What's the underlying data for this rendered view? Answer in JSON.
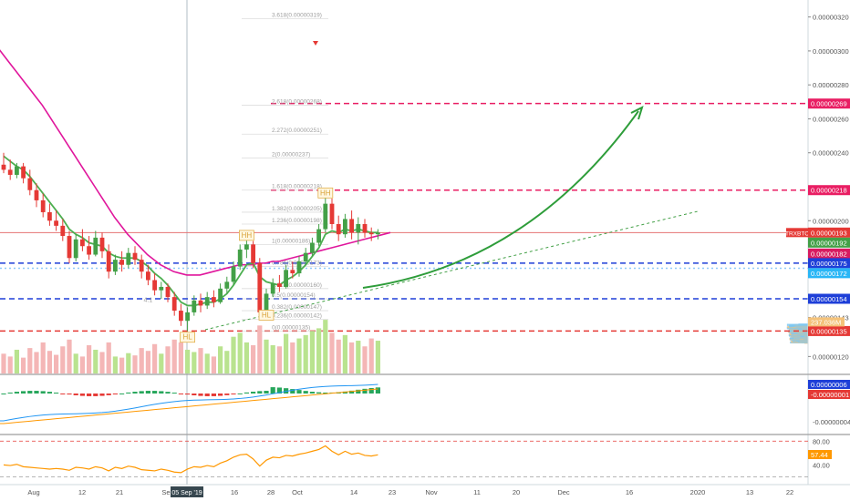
{
  "chart_data": {
    "type": "candlestick",
    "symbol": "TRXBTC",
    "price_axis": {
      "ylim": [
        1.1e-06,
        3.3e-06
      ],
      "ticks": [
        {
          "v": 3.2e-06,
          "label": "0.00000320"
        },
        {
          "v": 3e-06,
          "label": "0.00000300"
        },
        {
          "v": 2.8e-06,
          "label": "0.00000280"
        },
        {
          "v": 2.6e-06,
          "label": "0.00000260"
        },
        {
          "v": 2.4e-06,
          "label": "0.00000240"
        },
        {
          "v": 2e-06,
          "label": "0.00000200"
        },
        {
          "v": 1.43e-06,
          "label": "0.00000143"
        },
        {
          "v": 1.2e-06,
          "label": "0.00000120"
        }
      ]
    },
    "price_badges": [
      {
        "v": 2.69e-06,
        "label": "0.00000269",
        "color": "#e91e63"
      },
      {
        "v": 2.18e-06,
        "label": "0.00000218",
        "color": "#e91e63"
      },
      {
        "v": 1.93e-06,
        "label": "0.00000193",
        "color": "#e53935"
      },
      {
        "v": 1.92e-06,
        "label": "0.00000192",
        "color": "#43a047"
      },
      {
        "v": 1.82e-06,
        "label": "0.00000182",
        "color": "#d81b60"
      },
      {
        "v": 1.75e-06,
        "label": "0.00000175",
        "color": "#1e3fd8"
      },
      {
        "v": 1.72e-06,
        "label": "0.00000172",
        "color": "#29b6f6"
      },
      {
        "v": 1.54e-06,
        "label": "0.00000154",
        "color": "#1e3fd8"
      },
      {
        "v": 1.35e-06,
        "label": "0.00000135",
        "color": "#e53935"
      }
    ],
    "volume_badge": "237.036M",
    "horizontal_levels": [
      {
        "v": 2.69e-06,
        "color": "#e91e63",
        "style": "dashed"
      },
      {
        "v": 2.18e-06,
        "color": "#e91e63",
        "style": "dashed"
      },
      {
        "v": 1.93e-06,
        "color": "#e57373",
        "style": "solid"
      },
      {
        "v": 1.75e-06,
        "color": "#1e3fd8",
        "style": "dashed"
      },
      {
        "v": 1.72e-06,
        "color": "#90caf9",
        "style": "dotted"
      },
      {
        "v": 1.54e-06,
        "color": "#1e3fd8",
        "style": "dashed"
      },
      {
        "v": 1.35e-06,
        "color": "#e53935",
        "style": "dashed"
      }
    ],
    "fib_levels": [
      {
        "v": 3.19e-06,
        "label": "3.618(0.00000319)"
      },
      {
        "v": 2.68e-06,
        "label": "2.618(0.00000268)"
      },
      {
        "v": 2.51e-06,
        "label": "2.272(0.00000251)"
      },
      {
        "v": 2.37e-06,
        "label": "2(0.00000237)"
      },
      {
        "v": 2.18e-06,
        "label": "1.618(0.00000218)"
      },
      {
        "v": 2.05e-06,
        "label": "1.382(0.00000205)"
      },
      {
        "v": 1.98e-06,
        "label": "1.236(0.00000198)"
      },
      {
        "v": 1.86e-06,
        "label": "1(0.00000186)"
      },
      {
        "v": 1.73e-06,
        "label": "0.786(0.00000173)"
      },
      {
        "v": 1.6e-06,
        "label": "0.618(0.00000160)"
      },
      {
        "v": 1.54e-06,
        "label": "0.5(0.00000154)"
      },
      {
        "v": 1.47e-06,
        "label": "0.382(0.00000147)"
      },
      {
        "v": 1.42e-06,
        "label": "0.236(0.00000142)"
      },
      {
        "v": 1.35e-06,
        "label": "0(0.00000135)"
      }
    ],
    "pattern_labels": [
      {
        "i": 49,
        "v": 2.15e-06,
        "label": "HH"
      },
      {
        "i": 37,
        "v": 1.9e-06,
        "label": "HH"
      },
      {
        "i": 40,
        "v": 1.43e-06,
        "label": "HL"
      },
      {
        "i": 28,
        "v": 1.3e-06,
        "label": "HL"
      }
    ],
    "misc_labels": [
      {
        "i": 22,
        "v": 1.52e-06,
        "label": "4.1"
      }
    ],
    "candles": [
      {
        "o": 2.33,
        "h": 2.4,
        "l": 2.28,
        "c": 2.3
      },
      {
        "o": 2.3,
        "h": 2.36,
        "l": 2.24,
        "c": 2.27
      },
      {
        "o": 2.27,
        "h": 2.34,
        "l": 2.25,
        "c": 2.32
      },
      {
        "o": 2.32,
        "h": 2.34,
        "l": 2.22,
        "c": 2.25
      },
      {
        "o": 2.25,
        "h": 2.3,
        "l": 2.15,
        "c": 2.18
      },
      {
        "o": 2.18,
        "h": 2.22,
        "l": 2.08,
        "c": 2.12
      },
      {
        "o": 2.12,
        "h": 2.16,
        "l": 2.02,
        "c": 2.05
      },
      {
        "o": 2.05,
        "h": 2.1,
        "l": 1.97,
        "c": 2.0
      },
      {
        "o": 2.0,
        "h": 2.06,
        "l": 1.94,
        "c": 1.97
      },
      {
        "o": 1.97,
        "h": 2.01,
        "l": 1.88,
        "c": 1.91
      },
      {
        "o": 1.91,
        "h": 1.94,
        "l": 1.75,
        "c": 1.78
      },
      {
        "o": 1.78,
        "h": 1.92,
        "l": 1.76,
        "c": 1.89
      },
      {
        "o": 1.89,
        "h": 1.95,
        "l": 1.82,
        "c": 1.85
      },
      {
        "o": 1.85,
        "h": 1.91,
        "l": 1.77,
        "c": 1.8
      },
      {
        "o": 1.8,
        "h": 1.94,
        "l": 1.79,
        "c": 1.9
      },
      {
        "o": 1.9,
        "h": 1.93,
        "l": 1.78,
        "c": 1.82
      },
      {
        "o": 1.82,
        "h": 1.86,
        "l": 1.66,
        "c": 1.7
      },
      {
        "o": 1.7,
        "h": 1.8,
        "l": 1.68,
        "c": 1.77
      },
      {
        "o": 1.77,
        "h": 1.82,
        "l": 1.7,
        "c": 1.74
      },
      {
        "o": 1.74,
        "h": 1.84,
        "l": 1.72,
        "c": 1.81
      },
      {
        "o": 1.81,
        "h": 1.85,
        "l": 1.74,
        "c": 1.77
      },
      {
        "o": 1.77,
        "h": 1.8,
        "l": 1.66,
        "c": 1.7
      },
      {
        "o": 1.7,
        "h": 1.74,
        "l": 1.62,
        "c": 1.65
      },
      {
        "o": 1.65,
        "h": 1.69,
        "l": 1.56,
        "c": 1.59
      },
      {
        "o": 1.59,
        "h": 1.64,
        "l": 1.54,
        "c": 1.61
      },
      {
        "o": 1.61,
        "h": 1.63,
        "l": 1.52,
        "c": 1.55
      },
      {
        "o": 1.55,
        "h": 1.58,
        "l": 1.44,
        "c": 1.47
      },
      {
        "o": 1.47,
        "h": 1.51,
        "l": 1.38,
        "c": 1.41
      },
      {
        "o": 1.41,
        "h": 1.49,
        "l": 1.35,
        "c": 1.46
      },
      {
        "o": 1.46,
        "h": 1.56,
        "l": 1.44,
        "c": 1.53
      },
      {
        "o": 1.53,
        "h": 1.57,
        "l": 1.46,
        "c": 1.5
      },
      {
        "o": 1.5,
        "h": 1.58,
        "l": 1.48,
        "c": 1.55
      },
      {
        "o": 1.55,
        "h": 1.59,
        "l": 1.49,
        "c": 1.52
      },
      {
        "o": 1.52,
        "h": 1.63,
        "l": 1.51,
        "c": 1.6
      },
      {
        "o": 1.6,
        "h": 1.67,
        "l": 1.57,
        "c": 1.64
      },
      {
        "o": 1.64,
        "h": 1.76,
        "l": 1.62,
        "c": 1.73
      },
      {
        "o": 1.73,
        "h": 1.86,
        "l": 1.71,
        "c": 1.83
      },
      {
        "o": 1.83,
        "h": 1.9,
        "l": 1.78,
        "c": 1.86
      },
      {
        "o": 1.86,
        "h": 1.88,
        "l": 1.72,
        "c": 1.75
      },
      {
        "o": 1.75,
        "h": 1.78,
        "l": 1.42,
        "c": 1.46
      },
      {
        "o": 1.46,
        "h": 1.6,
        "l": 1.43,
        "c": 1.57
      },
      {
        "o": 1.57,
        "h": 1.66,
        "l": 1.55,
        "c": 1.63
      },
      {
        "o": 1.63,
        "h": 1.68,
        "l": 1.58,
        "c": 1.61
      },
      {
        "o": 1.61,
        "h": 1.74,
        "l": 1.6,
        "c": 1.71
      },
      {
        "o": 1.71,
        "h": 1.76,
        "l": 1.66,
        "c": 1.69
      },
      {
        "o": 1.69,
        "h": 1.79,
        "l": 1.67,
        "c": 1.76
      },
      {
        "o": 1.76,
        "h": 1.84,
        "l": 1.74,
        "c": 1.81
      },
      {
        "o": 1.81,
        "h": 1.9,
        "l": 1.79,
        "c": 1.87
      },
      {
        "o": 1.87,
        "h": 1.98,
        "l": 1.85,
        "c": 1.95
      },
      {
        "o": 1.95,
        "h": 2.14,
        "l": 1.93,
        "c": 2.1
      },
      {
        "o": 2.1,
        "h": 2.13,
        "l": 1.95,
        "c": 1.98
      },
      {
        "o": 1.98,
        "h": 2.03,
        "l": 1.88,
        "c": 1.92
      },
      {
        "o": 1.92,
        "h": 2.04,
        "l": 1.9,
        "c": 2.01
      },
      {
        "o": 2.01,
        "h": 2.06,
        "l": 1.89,
        "c": 1.93
      },
      {
        "o": 1.93,
        "h": 2.02,
        "l": 1.86,
        "c": 1.98
      },
      {
        "o": 1.98,
        "h": 2.01,
        "l": 1.9,
        "c": 1.93
      },
      {
        "o": 1.93,
        "h": 1.96,
        "l": 1.88,
        "c": 1.92
      },
      {
        "o": 1.92,
        "h": 1.95,
        "l": 1.89,
        "c": 1.93
      }
    ],
    "candle_scale": 1e-06,
    "ema_green": [
      2.38,
      2.35,
      2.32,
      2.3,
      2.26,
      2.21,
      2.16,
      2.11,
      2.06,
      2.01,
      1.95,
      1.92,
      1.9,
      1.87,
      1.86,
      1.85,
      1.81,
      1.79,
      1.78,
      1.78,
      1.78,
      1.76,
      1.73,
      1.69,
      1.66,
      1.62,
      1.57,
      1.52,
      1.5,
      1.5,
      1.51,
      1.52,
      1.52,
      1.54,
      1.57,
      1.62,
      1.68,
      1.74,
      1.75,
      1.67,
      1.64,
      1.63,
      1.62,
      1.65,
      1.67,
      1.7,
      1.74,
      1.79,
      1.84,
      1.92,
      1.94,
      1.93,
      1.95,
      1.94,
      1.95,
      1.94,
      1.93,
      1.93
    ],
    "sma_magenta": {
      "start_x": -4,
      "values": [
        3.03,
        2.98,
        2.93,
        2.88,
        2.83,
        2.78,
        2.73,
        2.68,
        2.62,
        2.56,
        2.5,
        2.44,
        2.38,
        2.32,
        2.26,
        2.2,
        2.14,
        2.08,
        2.02,
        1.97,
        1.92,
        1.88,
        1.84,
        1.8,
        1.77,
        1.74,
        1.72,
        1.7,
        1.69,
        1.68,
        1.68,
        1.68,
        1.69,
        1.7,
        1.71,
        1.72,
        1.73,
        1.74,
        1.74,
        1.74,
        1.75,
        1.75,
        1.76,
        1.76,
        1.77,
        1.78,
        1.79,
        1.8,
        1.81,
        1.82,
        1.83,
        1.84,
        1.85,
        1.86,
        1.87,
        1.88,
        1.89,
        1.9,
        1.91,
        1.92,
        1.93
      ]
    },
    "volume": [
      0.35,
      0.3,
      0.42,
      0.28,
      0.45,
      0.38,
      0.55,
      0.4,
      0.33,
      0.48,
      0.6,
      0.35,
      0.3,
      0.5,
      0.42,
      0.38,
      0.55,
      0.3,
      0.28,
      0.36,
      0.32,
      0.45,
      0.4,
      0.52,
      0.35,
      0.48,
      0.6,
      0.55,
      0.42,
      0.38,
      0.45,
      0.35,
      0.3,
      0.48,
      0.4,
      0.65,
      0.72,
      0.55,
      0.5,
      0.85,
      0.6,
      0.5,
      0.48,
      0.7,
      0.55,
      0.62,
      0.68,
      0.75,
      0.8,
      0.95,
      0.72,
      0.6,
      0.68,
      0.55,
      0.58,
      0.48,
      0.62,
      0.58
    ],
    "macd": {
      "zero_label": "0.00000006",
      "neg_label": "-0.00000001",
      "low_label": "-0.00000004"
    },
    "rsi": {
      "levels": [
        80,
        20
      ],
      "ticks": [
        {
          "v": 80,
          "label": "80.00"
        },
        {
          "v": 40,
          "label": "40.00"
        }
      ],
      "current": "57.44",
      "values": [
        40,
        39,
        41,
        37,
        36,
        35,
        34,
        33,
        34,
        33,
        31,
        36,
        35,
        33,
        37,
        35,
        30,
        36,
        34,
        38,
        36,
        32,
        31,
        30,
        33,
        31,
        28,
        27,
        33,
        37,
        36,
        39,
        37,
        43,
        47,
        53,
        57,
        58,
        50,
        38,
        48,
        53,
        52,
        56,
        55,
        58,
        60,
        63,
        66,
        72,
        63,
        57,
        63,
        58,
        60,
        56,
        55,
        57
      ]
    },
    "x_axis": {
      "ticks": [
        {
          "x": 37,
          "label": "Aug"
        },
        {
          "x": 90,
          "label": "12"
        },
        {
          "x": 131,
          "label": "21"
        },
        {
          "x": 182,
          "label": "Se"
        },
        {
          "x": 257,
          "label": "16"
        },
        {
          "x": 297,
          "label": "28"
        },
        {
          "x": 326,
          "label": "Oct"
        },
        {
          "x": 388,
          "label": "14"
        },
        {
          "x": 430,
          "label": "23"
        },
        {
          "x": 473,
          "label": "Nov"
        },
        {
          "x": 523,
          "label": "11"
        },
        {
          "x": 566,
          "label": "20"
        },
        {
          "x": 618,
          "label": "Dec"
        },
        {
          "x": 690,
          "label": "16"
        },
        {
          "x": 765,
          "label": "2020"
        },
        {
          "x": 822,
          "label": "13"
        },
        {
          "x": 866,
          "label": "22"
        }
      ],
      "crosshair_label": "05 Sep '19"
    }
  }
}
